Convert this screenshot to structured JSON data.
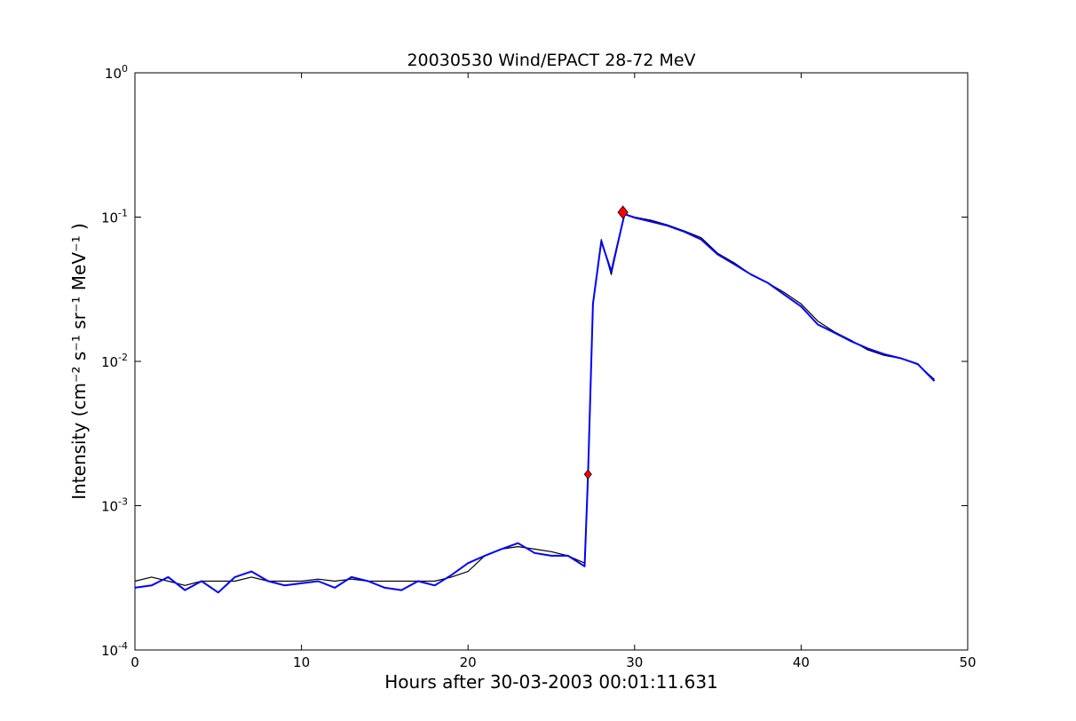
{
  "chart_data": {
    "type": "line",
    "title": "20030530 Wind/EPACT 28-72 MeV",
    "xlabel": "Hours after 30-03-2003 00:01:11.631",
    "ylabel": "Intensity (cm⁻² s⁻¹ sr⁻¹ MeV⁻¹ )",
    "xlim": [
      0,
      50
    ],
    "ylim": [
      0.0001,
      1
    ],
    "yscale": "log",
    "grid": false,
    "x_ticks": [
      0,
      10,
      20,
      30,
      40,
      50
    ],
    "x_tick_labels": [
      "0",
      "10",
      "20",
      "30",
      "40",
      "50"
    ],
    "y_ticks": [
      0.0001,
      0.001,
      0.01,
      0.1,
      1
    ],
    "y_tick_labels": [
      {
        "base": "10",
        "exp": "-4"
      },
      {
        "base": "10",
        "exp": "-3"
      },
      {
        "base": "10",
        "exp": "-2"
      },
      {
        "base": "10",
        "exp": "-1"
      },
      {
        "base": "10",
        "exp": "0"
      }
    ],
    "series": [
      {
        "role": "raw",
        "color": "#000000",
        "x": [
          0,
          1,
          2,
          3,
          4,
          5,
          6,
          7,
          8,
          9,
          10,
          11,
          12,
          13,
          14,
          15,
          16,
          17,
          18,
          19,
          20,
          21,
          22,
          23,
          24,
          25,
          26,
          27,
          27.2,
          27.5,
          28,
          28.6,
          29.4,
          30,
          31,
          32,
          33,
          34,
          35,
          36,
          37,
          38,
          39,
          40,
          41,
          42,
          43,
          44,
          45,
          46,
          47,
          48
        ],
        "y": [
          0.0003,
          0.00032,
          0.0003,
          0.00028,
          0.0003,
          0.0003,
          0.0003,
          0.00032,
          0.0003,
          0.0003,
          0.0003,
          0.00031,
          0.0003,
          0.00031,
          0.0003,
          0.0003,
          0.0003,
          0.0003,
          0.0003,
          0.00032,
          0.00035,
          0.00045,
          0.0005,
          0.00052,
          0.0005,
          0.00048,
          0.00045,
          0.0004,
          0.0016,
          0.025,
          0.07,
          0.04,
          0.105,
          0.1,
          0.095,
          0.088,
          0.08,
          0.072,
          0.056,
          0.048,
          0.04,
          0.035,
          0.03,
          0.025,
          0.019,
          0.016,
          0.014,
          0.012,
          0.011,
          0.0105,
          0.0095,
          0.0075
        ]
      },
      {
        "role": "smoothed",
        "color": "#0000ff",
        "x": [
          0,
          1,
          2,
          3,
          4,
          5,
          6,
          7,
          8,
          9,
          10,
          11,
          12,
          13,
          14,
          15,
          16,
          17,
          18,
          19,
          20,
          21,
          22,
          23,
          24,
          25,
          26,
          27,
          27.2,
          27.5,
          28,
          28.6,
          29.4,
          30,
          31,
          32,
          33,
          34,
          35,
          36,
          37,
          38,
          39,
          40,
          41,
          42,
          43,
          44,
          45,
          46,
          47,
          48
        ],
        "y": [
          0.00027,
          0.00028,
          0.00032,
          0.00026,
          0.0003,
          0.00025,
          0.00032,
          0.00035,
          0.0003,
          0.00028,
          0.00029,
          0.0003,
          0.00027,
          0.00032,
          0.0003,
          0.00027,
          0.00026,
          0.0003,
          0.00028,
          0.00033,
          0.0004,
          0.00045,
          0.0005,
          0.00055,
          0.00047,
          0.00045,
          0.00045,
          0.00038,
          0.0016,
          0.025,
          0.068,
          0.042,
          0.105,
          0.099,
          0.093,
          0.087,
          0.079,
          0.07,
          0.055,
          0.047,
          0.04,
          0.035,
          0.029,
          0.024,
          0.018,
          0.0158,
          0.0138,
          0.0123,
          0.0112,
          0.0105,
          0.0096,
          0.0073
        ]
      }
    ],
    "markers": [
      {
        "x": 27.2,
        "y": 0.00165,
        "color": "#ff0000",
        "shape": "diamond"
      },
      {
        "x": 29.3,
        "y": 0.108,
        "color": "#ff0000",
        "shape": "diamond"
      }
    ]
  }
}
